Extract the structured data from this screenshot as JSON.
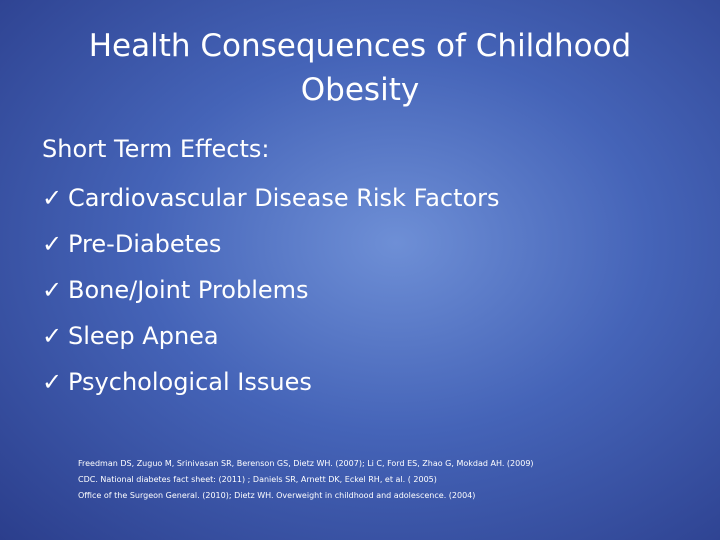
{
  "title": "Health Consequences of Childhood Obesity",
  "intro": "Short Term Effects:",
  "items": [
    "Cardiovascular Disease Risk Factors",
    "Pre-Diabetes",
    "Bone/Joint Problems",
    "Sleep Apnea",
    "Psychological Issues"
  ],
  "references": [
    "Freedman DS, Zuguo M, Srinivasan SR, Berenson GS, Dietz WH. (2007); Li C, Ford ES, Zhao G, Mokdad AH. (2009)",
    "CDC. National diabetes fact sheet: (2011) ; Daniels SR, Arnett DK, Eckel RH, et al. ( 2005)",
    "Office of the Surgeon General. (2010); Dietz WH. Overweight in childhood and adolescence. (2004)"
  ]
}
